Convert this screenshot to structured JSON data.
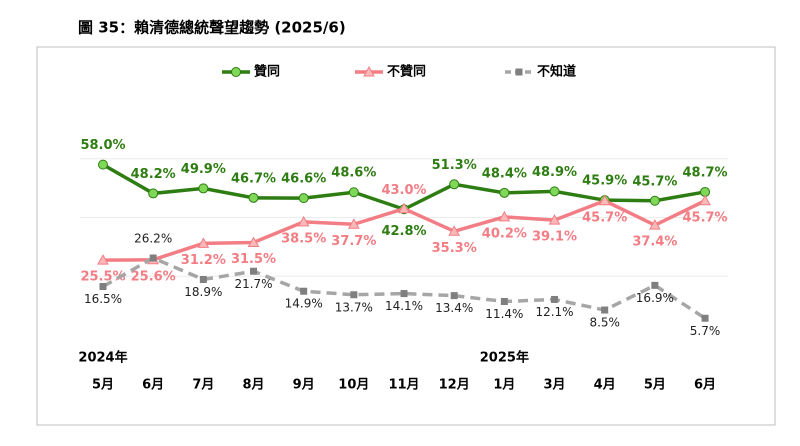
{
  "chart_data": {
    "type": "line",
    "title": "圖 35：賴清德總統聲望趨勢 (2025/6)",
    "categories": [
      "5月",
      "6月",
      "7月",
      "8月",
      "9月",
      "10月",
      "11月",
      "12月",
      "1月",
      "3月",
      "4月",
      "5月",
      "6月"
    ],
    "year_labels": [
      "2024年",
      null,
      null,
      null,
      null,
      null,
      null,
      null,
      "2025年",
      null,
      null,
      null,
      null
    ],
    "series": [
      {
        "name": "贊同",
        "color": "#2e7d12",
        "marker_color": "#7fd858",
        "marker": "circle",
        "values": [
          58.0,
          48.2,
          49.9,
          46.7,
          46.6,
          48.6,
          42.8,
          51.3,
          48.4,
          48.9,
          45.9,
          45.7,
          48.7
        ],
        "value_labels": [
          "58.0%",
          "48.2%",
          "49.9%",
          "46.7%",
          "46.6%",
          "48.6%",
          "42.8%",
          "51.3%",
          "48.4%",
          "48.9%",
          "45.9%",
          "45.7%",
          "48.7%"
        ]
      },
      {
        "name": "不贊同",
        "color": "#f27d84",
        "marker_color": "#fbb8b8",
        "marker": "triangle",
        "values": [
          25.5,
          25.6,
          31.2,
          31.5,
          38.5,
          37.7,
          43.0,
          35.3,
          40.2,
          39.1,
          45.7,
          37.4,
          45.7
        ],
        "value_labels": [
          "25.5%",
          "25.6%",
          "31.2%",
          "31.5%",
          "38.5%",
          "37.7%",
          "43.0%",
          "35.3%",
          "40.2%",
          "39.1%",
          "45.7%",
          "37.4%",
          "45.7%"
        ]
      },
      {
        "name": "不知道",
        "color": "#a6a6a6",
        "marker_color": "#7f7f7f",
        "marker": "square",
        "dashed": true,
        "values": [
          16.5,
          26.2,
          18.9,
          21.7,
          14.9,
          13.7,
          14.1,
          13.4,
          11.4,
          12.1,
          8.5,
          16.9,
          5.7
        ],
        "value_labels": [
          "16.5%",
          "26.2%",
          "18.9%",
          "21.7%",
          "14.9%",
          "13.7%",
          "14.1%",
          "13.4%",
          "11.4%",
          "12.1%",
          "8.5%",
          "16.9%",
          "5.7%"
        ]
      }
    ],
    "ylim": [
      0,
      80
    ],
    "yticks": [
      20,
      40,
      60
    ],
    "grid": true
  }
}
